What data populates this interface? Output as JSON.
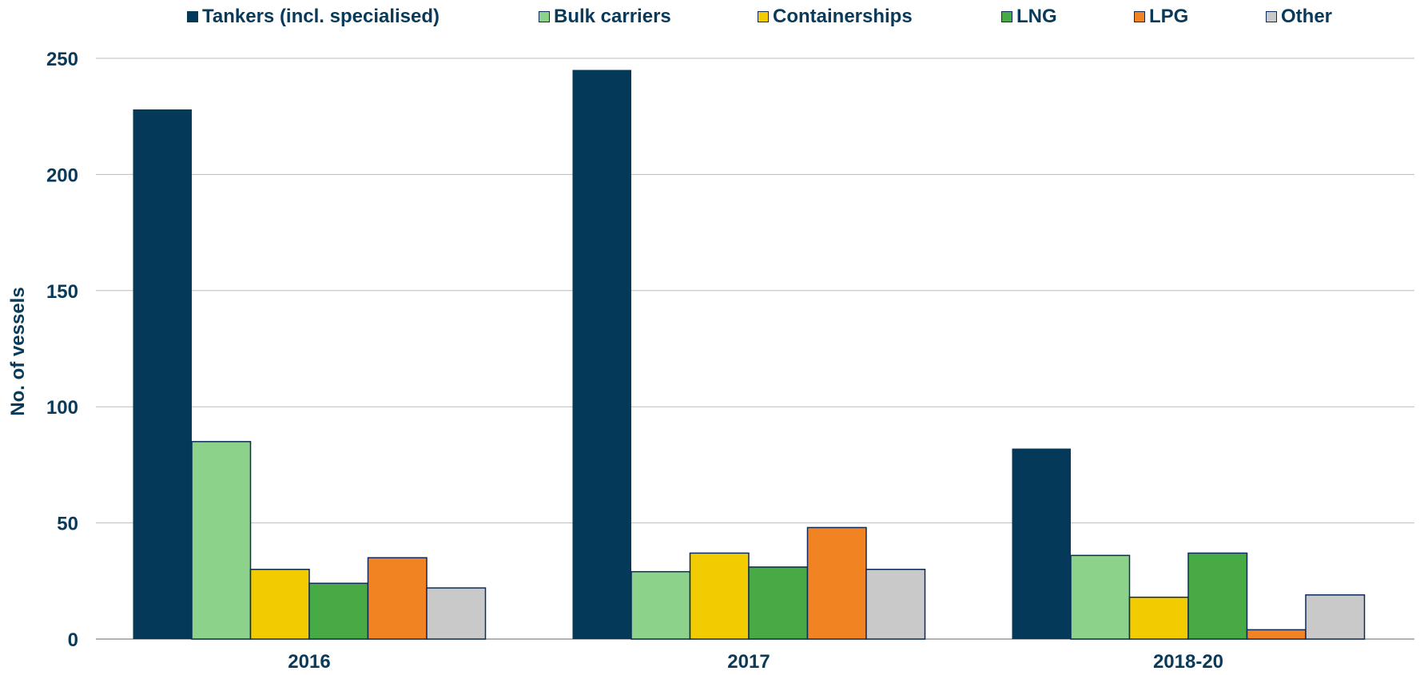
{
  "chart_data": {
    "type": "bar",
    "title": "",
    "xlabel": "",
    "ylabel": "No. of vessels",
    "ylim": [
      0,
      250
    ],
    "yticks": [
      0,
      50,
      100,
      150,
      200,
      250
    ],
    "grid": true,
    "legend_position": "top",
    "categories": [
      "2016",
      "2017",
      "2018-20"
    ],
    "series": [
      {
        "name": "Tankers (incl. specialised)",
        "color": "#04395a",
        "values": [
          228,
          245,
          82
        ]
      },
      {
        "name": "Bulk carriers",
        "color": "#8dd28a",
        "values": [
          85,
          29,
          36
        ]
      },
      {
        "name": "Containerships",
        "color": "#f2cb00",
        "values": [
          30,
          37,
          18
        ]
      },
      {
        "name": "LNG",
        "color": "#48aa44",
        "values": [
          24,
          31,
          37
        ]
      },
      {
        "name": "LPG",
        "color": "#f28322",
        "values": [
          35,
          48,
          4
        ]
      },
      {
        "name": "Other",
        "color": "#c9c9c9",
        "values": [
          22,
          30,
          19
        ]
      }
    ]
  }
}
